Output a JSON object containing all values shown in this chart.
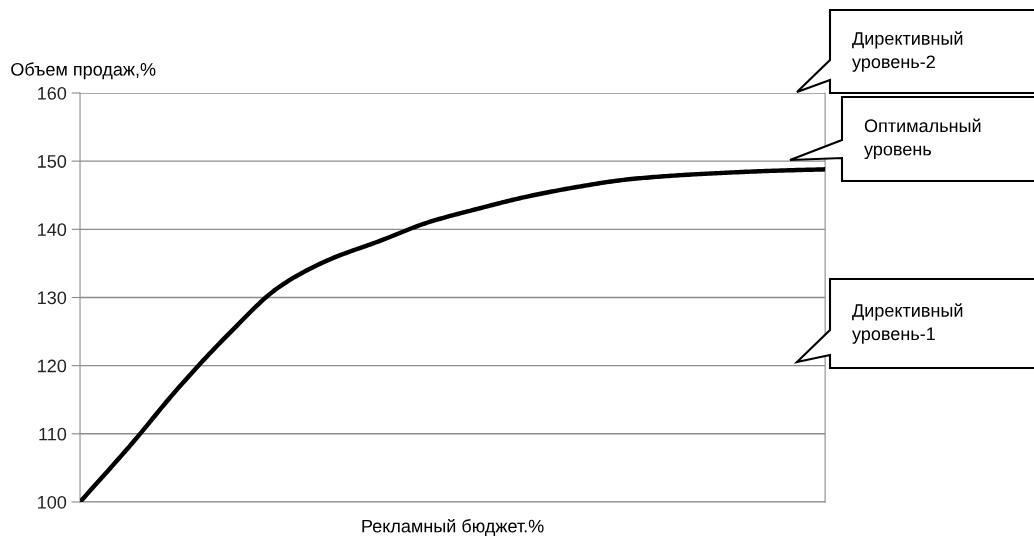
{
  "chart_data": {
    "type": "line",
    "xlabel": "Рекламный бюджет.%",
    "ylabel": "Объем продаж,%",
    "categories": [
      null,
      null,
      null,
      null,
      null,
      null,
      null,
      null,
      null,
      null,
      null,
      null,
      null,
      null,
      null,
      null
    ],
    "series": [
      {
        "color": "#000000",
        "values": [
          100,
          108.2,
          116.9,
          124.7,
          131.5,
          135.5,
          138.2,
          141,
          143,
          144.8,
          146.2,
          147.3,
          147.9,
          148.3,
          148.6,
          148.8
        ]
      }
    ],
    "ylim": [
      100,
      160
    ],
    "yticks": [
      100,
      110,
      120,
      130,
      140,
      150,
      160
    ],
    "grid": "y",
    "marker": "none",
    "line_style": "solid",
    "tick_labels": "y",
    "annotations": [
      "Директивный\nуровень-2",
      "Оптимальный\nуровень",
      "Директивный\nуровень-1"
    ]
  }
}
